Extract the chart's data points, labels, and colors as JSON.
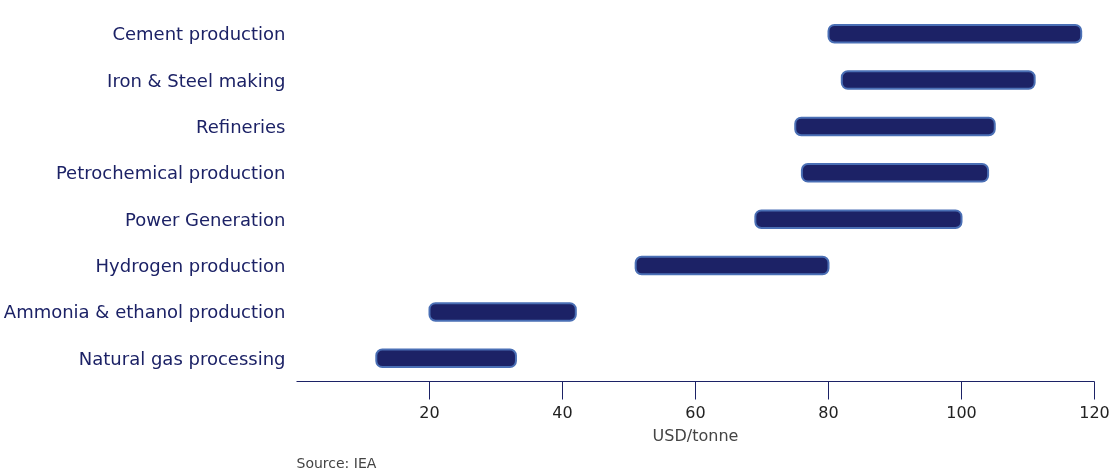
{
  "chart_data": {
    "type": "bar",
    "orientation": "horizontal",
    "xlabel": "USD/tonne",
    "categories": [
      "Cement production",
      "Iron & Steel making",
      "Refineries",
      "Petrochemical production",
      "Power Generation",
      "Hydrogen production",
      "Ammonia & ethanol production",
      "Natural gas processing"
    ],
    "base": [
      80,
      82,
      75,
      76,
      69,
      51,
      20,
      12
    ],
    "values": [
      38,
      29,
      30,
      28,
      31,
      29,
      22,
      21
    ],
    "color": "#1c2266",
    "xlim": [
      0,
      120
    ],
    "xticks": [
      20,
      40,
      60,
      80,
      100,
      120
    ],
    "grid": false,
    "annotations": [
      "Source: IEA"
    ]
  }
}
